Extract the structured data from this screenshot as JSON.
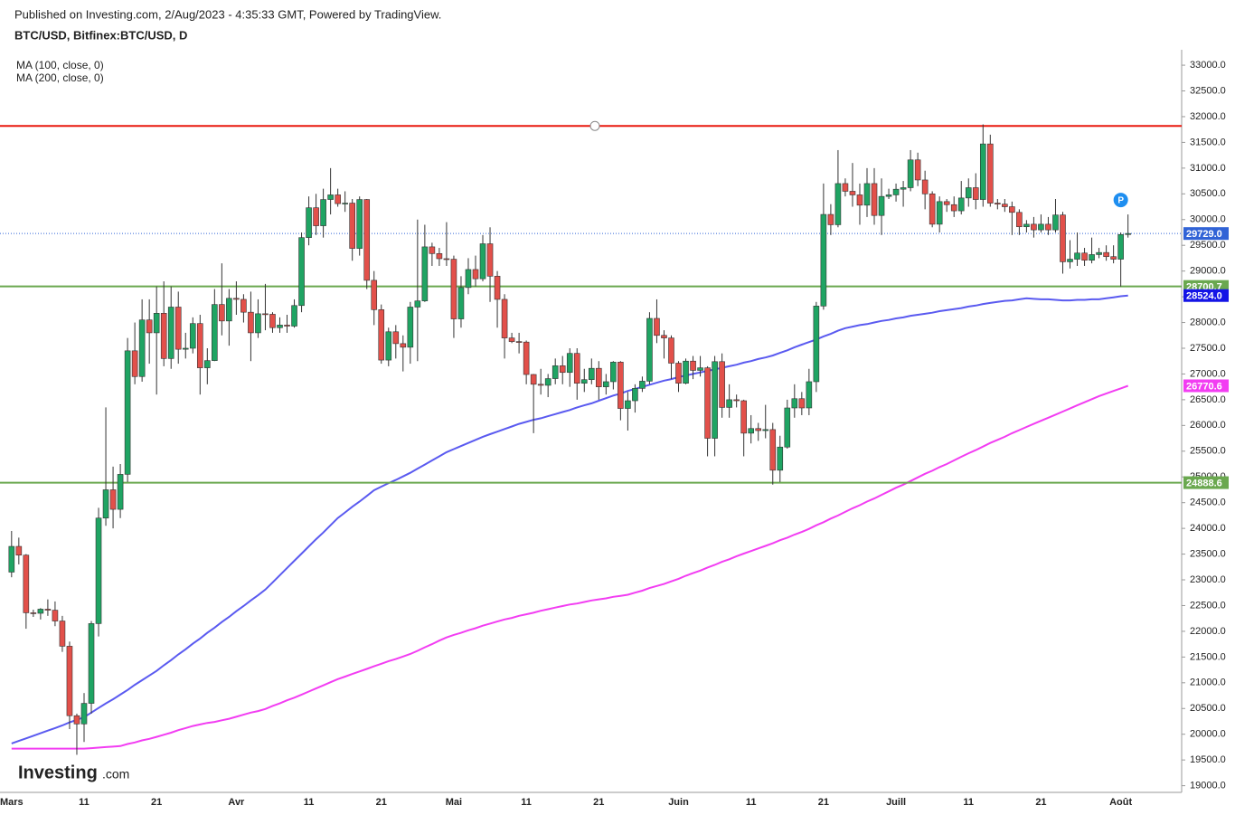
{
  "chart_data": {
    "type": "candlestick",
    "source": "Published on Investing.com, 2/Aug/2023 - 4:35:33 GMT, Powered by TradingView.",
    "title": "BTC/USD, Bitfinex:BTC/USD, D",
    "logo": "Investing",
    "logo_suffix": ".com",
    "marker_label": "P",
    "categories": [
      "Mars",
      null,
      null,
      null,
      null,
      null,
      null,
      null,
      null,
      null,
      "11",
      null,
      null,
      null,
      null,
      null,
      null,
      null,
      null,
      null,
      "21",
      null,
      null,
      null,
      null,
      null,
      null,
      null,
      null,
      null,
      null,
      "Avr",
      null,
      null,
      null,
      null,
      null,
      null,
      null,
      null,
      null,
      "11",
      null,
      null,
      null,
      null,
      null,
      null,
      null,
      null,
      null,
      "21",
      null,
      null,
      null,
      null,
      null,
      null,
      null,
      null,
      null,
      "Mai",
      null,
      null,
      null,
      null,
      null,
      null,
      null,
      null,
      null,
      "11",
      null,
      null,
      null,
      null,
      null,
      null,
      null,
      null,
      null,
      "21",
      null,
      null,
      null,
      null,
      null,
      null,
      null,
      null,
      null,
      null,
      "Juin",
      null,
      null,
      null,
      null,
      null,
      null,
      null,
      null,
      null,
      "11",
      null,
      null,
      null,
      null,
      null,
      null,
      null,
      null,
      null,
      "21",
      null,
      null,
      null,
      null,
      null,
      null,
      null,
      null,
      null,
      "Juill",
      null,
      null,
      null,
      null,
      null,
      null,
      null,
      null,
      null,
      "11",
      null,
      null,
      null,
      null,
      null,
      null,
      null,
      null,
      null,
      "21",
      null,
      null,
      null,
      null,
      null,
      null,
      null,
      null,
      null,
      null,
      "Août",
      null
    ],
    "open": [
      23150,
      23650,
      23480,
      22360,
      22350,
      22430,
      22410,
      22200,
      21710,
      20360,
      20200,
      20600,
      22150,
      24200,
      24750,
      24370,
      25050,
      27450,
      26950,
      28050,
      27800,
      28180,
      27300,
      28300,
      27480,
      27500,
      27980,
      27120,
      27260,
      28350,
      28030,
      28470,
      28450,
      28200,
      27800,
      28170,
      28160,
      27900,
      27950,
      27930,
      28330,
      29650,
      30230,
      29880,
      30390,
      30480,
      30310,
      30320,
      29440,
      30390,
      28820,
      28250,
      27270,
      27820,
      27590,
      27520,
      28300,
      28420,
      29470,
      29340,
      29240,
      29230,
      28070,
      28680,
      29030,
      28850,
      29530,
      28900,
      28450,
      27700,
      27630,
      27620,
      26990,
      26800,
      26780,
      26910,
      27160,
      27030,
      27400,
      26820,
      26890,
      27110,
      26750,
      26850,
      27230,
      26330,
      26480,
      26720,
      26860,
      28080,
      27750,
      27700,
      27210,
      26820,
      27250,
      27070,
      27120,
      25750,
      27240,
      26350,
      26500,
      26480,
      25850,
      25940,
      25900,
      25920,
      25130,
      25580,
      26340,
      26520,
      26340,
      26850,
      28320,
      30100,
      29900,
      30700,
      30550,
      30480,
      30280,
      30700,
      30080,
      30450,
      30480,
      30590,
      30620,
      31160,
      30770,
      30500,
      29910,
      30350,
      30290,
      30170,
      30420,
      30620,
      30390,
      31470,
      30320,
      30300,
      30250,
      30140,
      29860,
      29910,
      29800,
      29910,
      29800,
      30090,
      29180,
      29230,
      29350,
      29210,
      29320,
      29360,
      29280,
      29230,
      29710
    ],
    "high": [
      23950,
      23820,
      23500,
      22420,
      22450,
      22620,
      22580,
      22300,
      21800,
      20400,
      20800,
      22200,
      24400,
      26350,
      25200,
      25250,
      27700,
      28000,
      28450,
      28450,
      28700,
      28800,
      28700,
      28600,
      27800,
      28100,
      28150,
      27500,
      28650,
      29150,
      28650,
      28800,
      28550,
      28600,
      28450,
      28750,
      28200,
      28100,
      28150,
      28450,
      29750,
      30450,
      30500,
      30600,
      31000,
      30600,
      30550,
      30400,
      30450,
      30400,
      29000,
      28350,
      27900,
      27950,
      27750,
      28400,
      30000,
      29900,
      29550,
      29450,
      29950,
      29300,
      28900,
      29250,
      29300,
      29700,
      29850,
      29000,
      28550,
      27800,
      27800,
      27650,
      27000,
      27100,
      27000,
      27300,
      27350,
      27500,
      27500,
      27100,
      27300,
      27250,
      27000,
      27250,
      27250,
      26650,
      26800,
      26950,
      28200,
      28450,
      27850,
      27750,
      27250,
      27300,
      27350,
      27350,
      27150,
      27350,
      27400,
      26800,
      26600,
      26500,
      26200,
      26050,
      26400,
      26050,
      25800,
      26500,
      26800,
      26650,
      27100,
      28400,
      30700,
      30300,
      31350,
      30800,
      31100,
      30700,
      31000,
      31000,
      30800,
      30600,
      30700,
      30750,
      31350,
      31300,
      30950,
      30550,
      30450,
      30400,
      30450,
      30750,
      30800,
      30900,
      31850,
      31650,
      30400,
      30400,
      30350,
      30200,
      29990,
      30050,
      30100,
      30050,
      30400,
      30150,
      29600,
      29750,
      29450,
      29650,
      29450,
      29500,
      29500,
      29750,
      30100
    ],
    "low": [
      23050,
      23300,
      22050,
      22280,
      22230,
      22300,
      22100,
      21600,
      20100,
      19600,
      19850,
      20400,
      21900,
      24050,
      24000,
      24200,
      24900,
      26800,
      26850,
      27200,
      26600,
      27150,
      27100,
      27200,
      27300,
      27400,
      26600,
      26800,
      27250,
      27750,
      27550,
      28150,
      28000,
      27250,
      27700,
      27850,
      27800,
      27800,
      27800,
      27900,
      28200,
      29500,
      29700,
      29650,
      30100,
      30250,
      30150,
      29200,
      29300,
      28650,
      27950,
      27200,
      27150,
      27300,
      27050,
      27200,
      27250,
      28400,
      29100,
      29100,
      29100,
      27700,
      27900,
      28550,
      28700,
      28800,
      28400,
      27900,
      27300,
      27600,
      27400,
      26800,
      25850,
      26600,
      26550,
      26800,
      26800,
      26750,
      26500,
      26650,
      26800,
      26500,
      26600,
      26700,
      26100,
      25900,
      26250,
      26650,
      26800,
      27600,
      27300,
      26900,
      26650,
      26800,
      26900,
      26950,
      25400,
      25400,
      26150,
      26150,
      26350,
      25400,
      25650,
      25700,
      25750,
      24850,
      24900,
      25550,
      26150,
      26200,
      26200,
      26650,
      28250,
      29700,
      29850,
      30450,
      30250,
      29900,
      30050,
      29900,
      29700,
      30400,
      30350,
      30250,
      30550,
      30650,
      30200,
      29850,
      29750,
      30150,
      30050,
      30100,
      30250,
      30200,
      30250,
      30250,
      30200,
      30150,
      29700,
      29700,
      29750,
      29650,
      29750,
      29700,
      29750,
      28950,
      29050,
      29100,
      29100,
      29150,
      29250,
      29200,
      29150,
      28700,
      29650
    ],
    "close": [
      23650,
      23480,
      22360,
      22350,
      22430,
      22410,
      22200,
      21710,
      20360,
      20200,
      20600,
      22150,
      24200,
      24750,
      24370,
      25050,
      27450,
      26950,
      28050,
      27800,
      28180,
      27300,
      28300,
      27480,
      27500,
      27980,
      27120,
      27260,
      28350,
      28030,
      28470,
      28450,
      28200,
      27800,
      28170,
      28160,
      27900,
      27950,
      27930,
      28330,
      29650,
      30230,
      29880,
      30390,
      30480,
      30310,
      30320,
      29440,
      30390,
      28820,
      28250,
      27270,
      27820,
      27590,
      27520,
      28300,
      28420,
      29470,
      29340,
      29240,
      29230,
      28070,
      28680,
      29030,
      28850,
      29530,
      28900,
      28450,
      27700,
      27630,
      27620,
      26990,
      26800,
      26780,
      26910,
      27160,
      27030,
      27400,
      26820,
      26890,
      27110,
      26750,
      26850,
      27230,
      26330,
      26480,
      26720,
      26860,
      28080,
      27750,
      27700,
      27210,
      26820,
      27250,
      27070,
      27120,
      25750,
      27240,
      26350,
      26500,
      26480,
      25850,
      25940,
      25900,
      25920,
      25130,
      25580,
      26340,
      26520,
      26340,
      26850,
      28320,
      30100,
      29900,
      30700,
      30550,
      30480,
      30280,
      30700,
      30080,
      30450,
      30480,
      30590,
      30620,
      31160,
      30770,
      30500,
      29910,
      30350,
      30290,
      30170,
      30420,
      30620,
      30390,
      31470,
      30320,
      30300,
      30250,
      30140,
      29860,
      29910,
      29800,
      29910,
      29800,
      30090,
      29180,
      29230,
      29350,
      29210,
      29320,
      29360,
      29280,
      29230,
      29710,
      29729
    ],
    "up_color": "#1fa463",
    "down_color": "#e2504a",
    "series": [
      {
        "name": "MA (100, close, 0)",
        "color": "#5a5af0",
        "label_color": "#1414e6",
        "last_label": "28524.0",
        "values": [
          19820,
          19870,
          19920,
          19970,
          20020,
          20070,
          20120,
          20170,
          20230,
          20280,
          20330,
          20420,
          20510,
          20600,
          20680,
          20770,
          20860,
          20960,
          21050,
          21140,
          21230,
          21340,
          21440,
          21550,
          21650,
          21760,
          21860,
          21970,
          22070,
          22180,
          22280,
          22390,
          22490,
          22600,
          22700,
          22810,
          22950,
          23090,
          23230,
          23370,
          23510,
          23650,
          23790,
          23920,
          24060,
          24200,
          24310,
          24420,
          24520,
          24630,
          24740,
          24810,
          24880,
          24940,
          25010,
          25080,
          25160,
          25240,
          25320,
          25400,
          25480,
          25540,
          25600,
          25660,
          25720,
          25780,
          25830,
          25880,
          25930,
          25980,
          26030,
          26070,
          26110,
          26140,
          26180,
          26220,
          26260,
          26300,
          26350,
          26390,
          26430,
          26480,
          26530,
          26580,
          26620,
          26670,
          26710,
          26750,
          26790,
          26830,
          26870,
          26900,
          26940,
          26970,
          27000,
          27030,
          27060,
          27090,
          27120,
          27150,
          27180,
          27220,
          27250,
          27290,
          27320,
          27360,
          27410,
          27460,
          27520,
          27570,
          27620,
          27670,
          27730,
          27780,
          27840,
          27890,
          27920,
          27950,
          27970,
          28000,
          28030,
          28050,
          28080,
          28100,
          28130,
          28150,
          28170,
          28190,
          28220,
          28240,
          28260,
          28280,
          28310,
          28330,
          28360,
          28380,
          28400,
          28420,
          28430,
          28450,
          28470,
          28460,
          28450,
          28450,
          28440,
          28430,
          28430,
          28440,
          28440,
          28450,
          28450,
          28470,
          28490,
          28510,
          28524.0
        ]
      },
      {
        "name": "MA (200, close, 0)",
        "color": "#f23df2",
        "label_color": "#f23df2",
        "last_label": "26770.6",
        "values": [
          19720,
          19720,
          19720,
          19720,
          19720,
          19720,
          19720,
          19720,
          19720,
          19720,
          19720,
          19730,
          19740,
          19750,
          19760,
          19770,
          19810,
          19840,
          19880,
          19910,
          19950,
          19990,
          20030,
          20080,
          20120,
          20160,
          20190,
          20220,
          20240,
          20270,
          20300,
          20340,
          20380,
          20420,
          20450,
          20490,
          20550,
          20600,
          20660,
          20710,
          20770,
          20830,
          20890,
          20950,
          21010,
          21070,
          21120,
          21170,
          21220,
          21270,
          21320,
          21370,
          21420,
          21460,
          21510,
          21560,
          21620,
          21690,
          21750,
          21820,
          21880,
          21930,
          21970,
          22020,
          22060,
          22110,
          22150,
          22190,
          22230,
          22260,
          22300,
          22330,
          22360,
          22400,
          22430,
          22460,
          22490,
          22520,
          22540,
          22570,
          22600,
          22620,
          22640,
          22670,
          22690,
          22710,
          22750,
          22790,
          22840,
          22880,
          22920,
          22970,
          23020,
          23080,
          23130,
          23180,
          23240,
          23290,
          23350,
          23400,
          23460,
          23510,
          23560,
          23610,
          23660,
          23710,
          23770,
          23820,
          23880,
          23930,
          23990,
          24060,
          24120,
          24190,
          24250,
          24320,
          24390,
          24450,
          24520,
          24580,
          24650,
          24720,
          24790,
          24850,
          24920,
          24990,
          25060,
          25120,
          25190,
          25250,
          25320,
          25390,
          25460,
          25520,
          25590,
          25660,
          25720,
          25780,
          25850,
          25910,
          25970,
          26030,
          26090,
          26150,
          26210,
          26270,
          26330,
          26390,
          26450,
          26510,
          26570,
          26620,
          26670,
          26720,
          26770.6
        ]
      }
    ],
    "hlines": [
      {
        "value": 31820,
        "color": "#e8190e"
      },
      {
        "value": 28700.7,
        "label": "28700.7",
        "color": "#6aa84f"
      },
      {
        "value": 24888.6,
        "label": "24888.6",
        "color": "#6aa84f"
      }
    ],
    "last_price": {
      "value": 29729,
      "label": "29729.0",
      "color": "#3163d6"
    },
    "ylim": [
      18870,
      33300
    ],
    "yticks": [
      {
        "value": 19000,
        "label": "19000.0"
      },
      {
        "value": 19500,
        "label": "19500.0"
      },
      {
        "value": 20000,
        "label": "20000.0"
      },
      {
        "value": 20500,
        "label": "20500.0"
      },
      {
        "value": 21000,
        "label": "21000.0"
      },
      {
        "value": 21500,
        "label": "21500.0"
      },
      {
        "value": 22000,
        "label": "22000.0"
      },
      {
        "value": 22500,
        "label": "22500.0"
      },
      {
        "value": 23000,
        "label": "23000.0"
      },
      {
        "value": 23500,
        "label": "23500.0"
      },
      {
        "value": 24000,
        "label": "24000.0"
      },
      {
        "value": 24500,
        "label": "24500.0"
      },
      {
        "value": 25000,
        "label": "25000.0"
      },
      {
        "value": 25500,
        "label": "25500.0"
      },
      {
        "value": 26000,
        "label": "26000.0"
      },
      {
        "value": 26500,
        "label": "26500.0"
      },
      {
        "value": 27000,
        "label": "27000.0"
      },
      {
        "value": 27500,
        "label": "27500.0"
      },
      {
        "value": 28000,
        "label": "28000.0"
      },
      {
        "value": 28500,
        "label": "28500.0"
      },
      {
        "value": 29000,
        "label": "29000.0"
      },
      {
        "value": 29500,
        "label": "29500.0"
      },
      {
        "value": 30000,
        "label": "30000.0"
      },
      {
        "value": 30500,
        "label": "30500.0"
      },
      {
        "value": 31000,
        "label": "31000.0"
      },
      {
        "value": 31500,
        "label": "31500.0"
      },
      {
        "value": 32000,
        "label": "32000.0"
      },
      {
        "value": 32500,
        "label": "32500.0"
      },
      {
        "value": 33000,
        "label": "33000.0"
      }
    ],
    "grid": false
  }
}
